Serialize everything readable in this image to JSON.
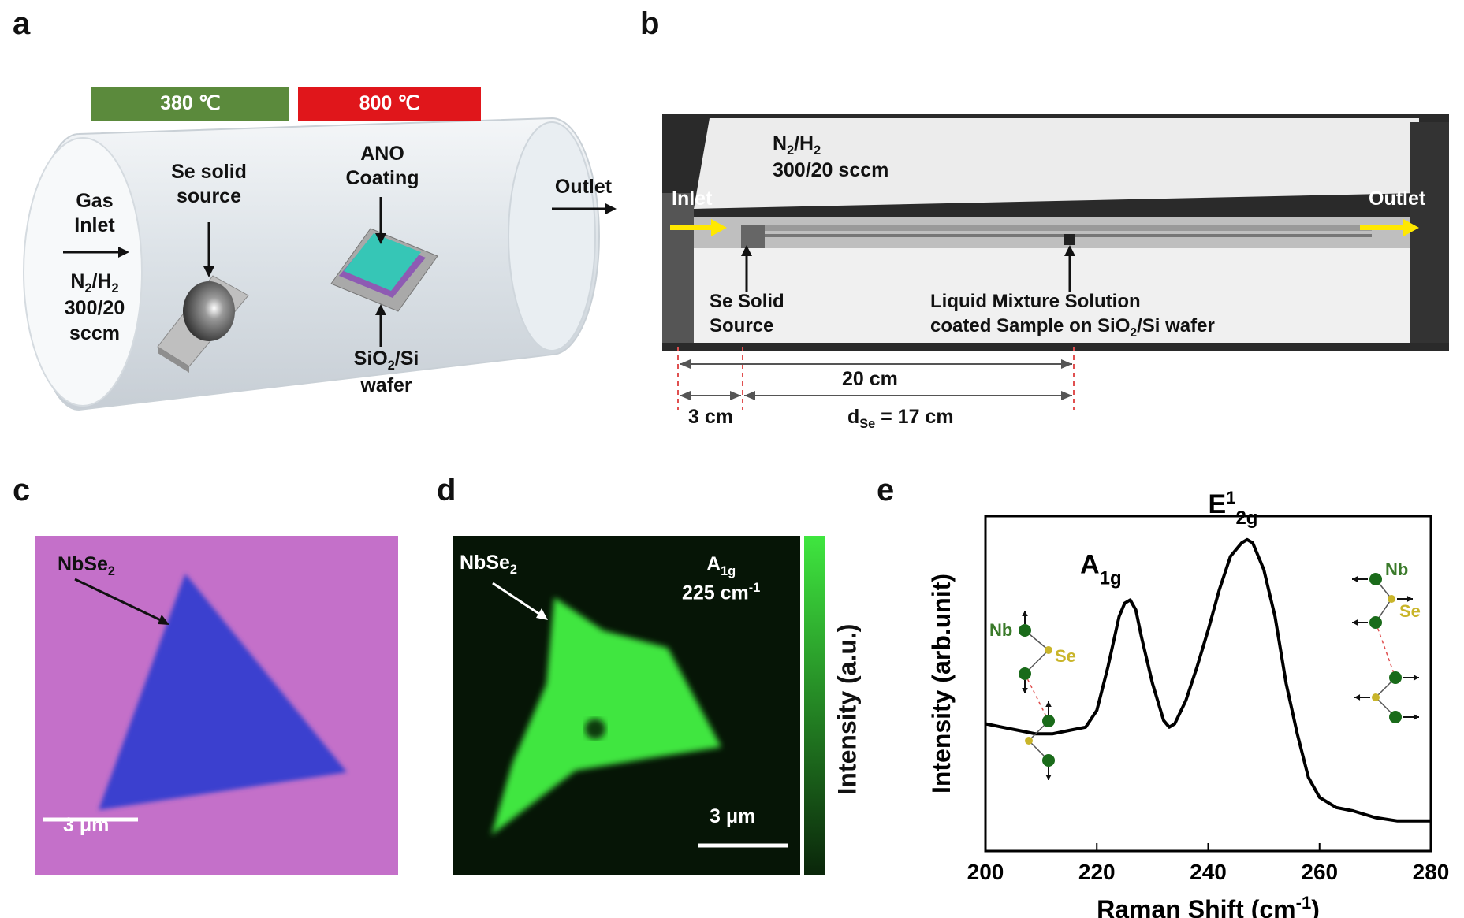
{
  "panels": {
    "a": {
      "letter": "a",
      "zone1": {
        "label": "380 ℃",
        "color": "#5b8a3c"
      },
      "zone2": {
        "label": "800 ℃",
        "color": "#e0161b"
      },
      "gas_inlet": "Gas\nInlet",
      "gas_flow_1": "N",
      "gas_flow_2": "/H",
      "gas_flow_3": "300/20",
      "gas_flow_4": "sccm",
      "se_source": "Se solid\nsource",
      "ano": "ANO\nCoating",
      "outlet": "Outlet",
      "wafer_1": "SiO",
      "wafer_2": "/Si",
      "wafer_3": "wafer"
    },
    "b": {
      "letter": "b",
      "gas_1": "N",
      "gas_2": "/H",
      "gas_3": "300/20 sccm",
      "inlet": "Inlet",
      "outlet": "Outlet",
      "se_source": "Se Solid\nSource",
      "sample_1": "Liquid Mixture Solution",
      "sample_2": "coated Sample on SiO",
      "sample_3": "/Si wafer",
      "dist_total": "20 cm",
      "dist_short": "3 cm",
      "dist_se_1": "d",
      "dist_se_sub": "Se",
      "dist_se_2": " = 17 cm"
    },
    "c": {
      "letter": "c",
      "label_1": "NbSe",
      "label_sub": "2",
      "scale": "3 μm"
    },
    "d": {
      "letter": "d",
      "label_1": "NbSe",
      "label_sub": "2",
      "mode_1": "A",
      "mode_sub": "1g",
      "mode_freq": "225 cm",
      "mode_sup": "-1",
      "scale": "3 μm",
      "colorbar_label": "Intensity (a.u.)"
    },
    "e": {
      "letter": "e",
      "peak_a_1": "A",
      "peak_a_sub": "1g",
      "peak_e_1": "E",
      "peak_e_sup": "1",
      "peak_e_sub": "2g",
      "nb": "Nb",
      "se": "Se"
    }
  },
  "chart_data": {
    "type": "line",
    "title": "",
    "xlabel": "Raman Shift (cm-1)",
    "ylabel": "Intensity (arb.unit)",
    "xlim": [
      200,
      280
    ],
    "xticks": [
      200,
      220,
      240,
      260,
      280
    ],
    "yticks_shown": false,
    "series": [
      {
        "x": [
          200,
          203,
          206,
          209,
          212,
          215,
          218,
          220,
          222,
          224,
          225,
          226,
          227,
          228,
          230,
          232,
          233,
          234,
          236,
          238,
          240,
          242,
          244,
          246,
          247,
          248,
          250,
          252,
          254,
          256,
          258,
          260,
          263,
          266,
          270,
          274,
          277,
          280
        ],
        "y": [
          0.38,
          0.37,
          0.36,
          0.35,
          0.35,
          0.36,
          0.37,
          0.42,
          0.55,
          0.7,
          0.74,
          0.75,
          0.72,
          0.64,
          0.5,
          0.39,
          0.37,
          0.38,
          0.45,
          0.55,
          0.66,
          0.78,
          0.88,
          0.92,
          0.93,
          0.92,
          0.84,
          0.7,
          0.5,
          0.35,
          0.22,
          0.16,
          0.13,
          0.12,
          0.1,
          0.09,
          0.09,
          0.09
        ],
        "color": "#000000"
      }
    ],
    "annotations": [
      "A1g",
      "E12g"
    ]
  }
}
